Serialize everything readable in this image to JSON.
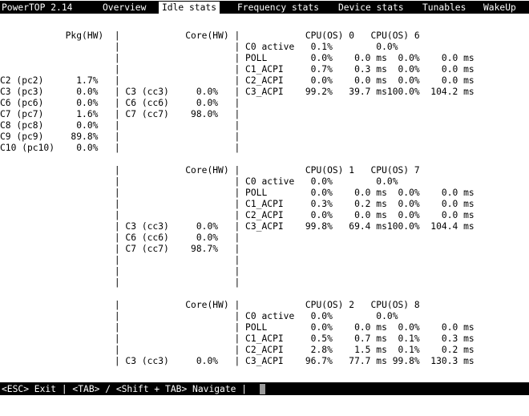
{
  "app": {
    "title": "PowerTOP 2.14",
    "tabs": [
      {
        "label": "Overview",
        "active": false
      },
      {
        "label": "Idle stats",
        "active": true
      },
      {
        "label": "Frequency stats",
        "active": false
      },
      {
        "label": "Device stats",
        "active": false
      },
      {
        "label": "Tunables",
        "active": false
      },
      {
        "label": "WakeUp",
        "active": false
      }
    ]
  },
  "screen_lines": [
    "            Pkg(HW)  |            Core(HW) |            CPU(OS) 0   CPU(OS) 6",
    "                     |                     | C0 active   0.1%        0.0%",
    "                     |                     | POLL        0.0%    0.0 ms  0.0%    0.0 ms",
    "                     |                     | C1_ACPI     0.7%    0.3 ms  0.0%    0.0 ms",
    "C2 (pc2)      1.7%   |                     | C2_ACPI     0.0%    0.0 ms  0.0%    0.0 ms",
    "C3 (pc3)      0.0%   | C3 (cc3)     0.0%   | C3_ACPI    99.2%   39.7 ms100.0%  104.2 ms",
    "C6 (pc6)      0.0%   | C6 (cc6)     0.0%   |",
    "C7 (pc7)      1.6%   | C7 (cc7)    98.0%   |",
    "C8 (pc8)      0.0%   |                     |",
    "C9 (pc9)     89.8%   |                     |",
    "C10 (pc10)    0.0%   |                     |",
    "",
    "                     |            Core(HW) |            CPU(OS) 1   CPU(OS) 7",
    "                     |                     | C0 active   0.0%        0.0%",
    "                     |                     | POLL        0.0%    0.0 ms  0.0%    0.0 ms",
    "                     |                     | C1_ACPI     0.3%    0.2 ms  0.0%    0.0 ms",
    "                     |                     | C2_ACPI     0.0%    0.0 ms  0.0%    0.0 ms",
    "                     | C3 (cc3)     0.0%   | C3_ACPI    99.8%   69.4 ms100.0%  104.4 ms",
    "                     | C6 (cc6)     0.0%   |",
    "                     | C7 (cc7)    98.7%   |",
    "                     |                     |",
    "                     |                     |",
    "                     |                     |",
    "",
    "                     |            Core(HW) |            CPU(OS) 2   CPU(OS) 8",
    "                     |                     | C0 active   0.0%        0.0%",
    "                     |                     | POLL        0.0%    0.0 ms  0.0%    0.0 ms",
    "                     |                     | C1_ACPI     0.5%    0.7 ms  0.1%    0.3 ms",
    "                     |                     | C2_ACPI     2.8%    1.5 ms  0.1%    0.2 ms",
    "                     | C3 (cc3)     0.0%   | C3_ACPI    96.7%   77.7 ms 99.8%  130.3 ms"
  ],
  "footer": {
    "text": "<ESC> Exit | <TAB> / <Shift + TAB> Navigate |"
  }
}
